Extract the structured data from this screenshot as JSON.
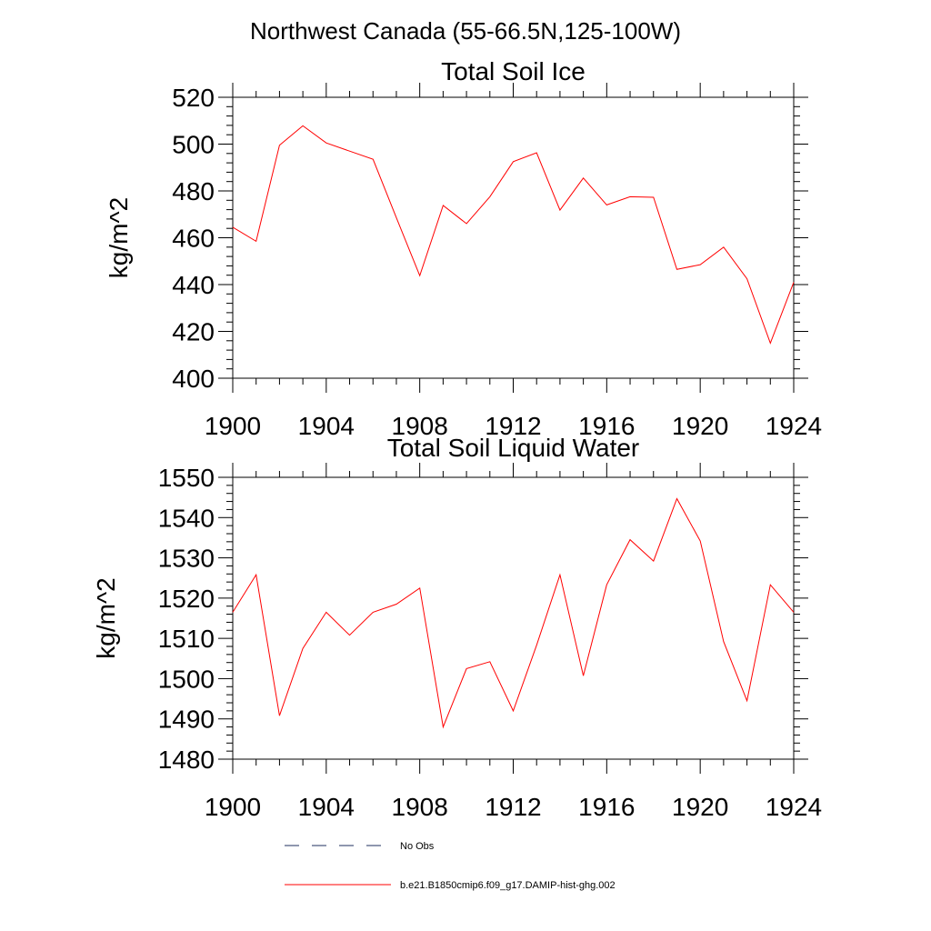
{
  "figure": {
    "title": "Northwest Canada (55-66.5N,125-100W)"
  },
  "legend": [
    {
      "label": "No Obs",
      "color": "#000000",
      "style": "dashed"
    },
    {
      "label": "b.e21.B1850cmip6.f09_g17.DAMIP-hist-ghg.002",
      "color": "#ff0000",
      "style": "solid"
    }
  ],
  "chart_data": [
    {
      "type": "line",
      "title": "Total Soil Ice",
      "xlabel": "",
      "ylabel": "kg/m^2",
      "xlim": [
        1900,
        1924
      ],
      "ylim": [
        400,
        520
      ],
      "xticks": [
        "1900",
        "1904",
        "1908",
        "1912",
        "1916",
        "1920",
        "1924"
      ],
      "yticks": [
        "400",
        "420",
        "440",
        "460",
        "480",
        "500",
        "520"
      ],
      "grid": false,
      "series": [
        {
          "color": "#ff0000",
          "x": [
            1900,
            1901,
            1902,
            1903,
            1904,
            1905,
            1906,
            1907,
            1908,
            1909,
            1910,
            1911,
            1912,
            1913,
            1914,
            1915,
            1916,
            1917,
            1918,
            1919,
            1920,
            1921,
            1922,
            1923,
            1924
          ],
          "values": [
            464.5,
            458.5,
            499.5,
            507.8,
            500.5,
            497,
            493.5,
            468.5,
            443.8,
            473.8,
            466,
            477.5,
            492.5,
            496.3,
            471.8,
            485.5,
            474,
            477.5,
            477.3,
            446.5,
            448.5,
            456,
            442.5,
            415,
            441
          ]
        }
      ]
    },
    {
      "type": "line",
      "title": "Total Soil Liquid Water",
      "xlabel": "",
      "ylabel": "kg/m^2",
      "xlim": [
        1900,
        1924
      ],
      "ylim": [
        1480,
        1550
      ],
      "xticks": [
        "1900",
        "1904",
        "1908",
        "1912",
        "1916",
        "1920",
        "1924"
      ],
      "yticks": [
        "1480",
        "1490",
        "1500",
        "1510",
        "1520",
        "1530",
        "1540",
        "1550"
      ],
      "grid": false,
      "series": [
        {
          "color": "#ff0000",
          "x": [
            1900,
            1901,
            1902,
            1903,
            1904,
            1905,
            1906,
            1907,
            1908,
            1909,
            1910,
            1911,
            1912,
            1913,
            1914,
            1915,
            1916,
            1917,
            1918,
            1919,
            1920,
            1921,
            1922,
            1923,
            1924
          ],
          "values": [
            1516.5,
            1525.8,
            1490.8,
            1507.5,
            1516.5,
            1510.8,
            1516.5,
            1518.5,
            1522.5,
            1488,
            1502.5,
            1504.2,
            1492,
            1508.3,
            1525.8,
            1500.7,
            1523.3,
            1534.5,
            1529.2,
            1544.7,
            1534.2,
            1509.2,
            1494.5,
            1523.3,
            1516.5
          ]
        }
      ]
    }
  ]
}
